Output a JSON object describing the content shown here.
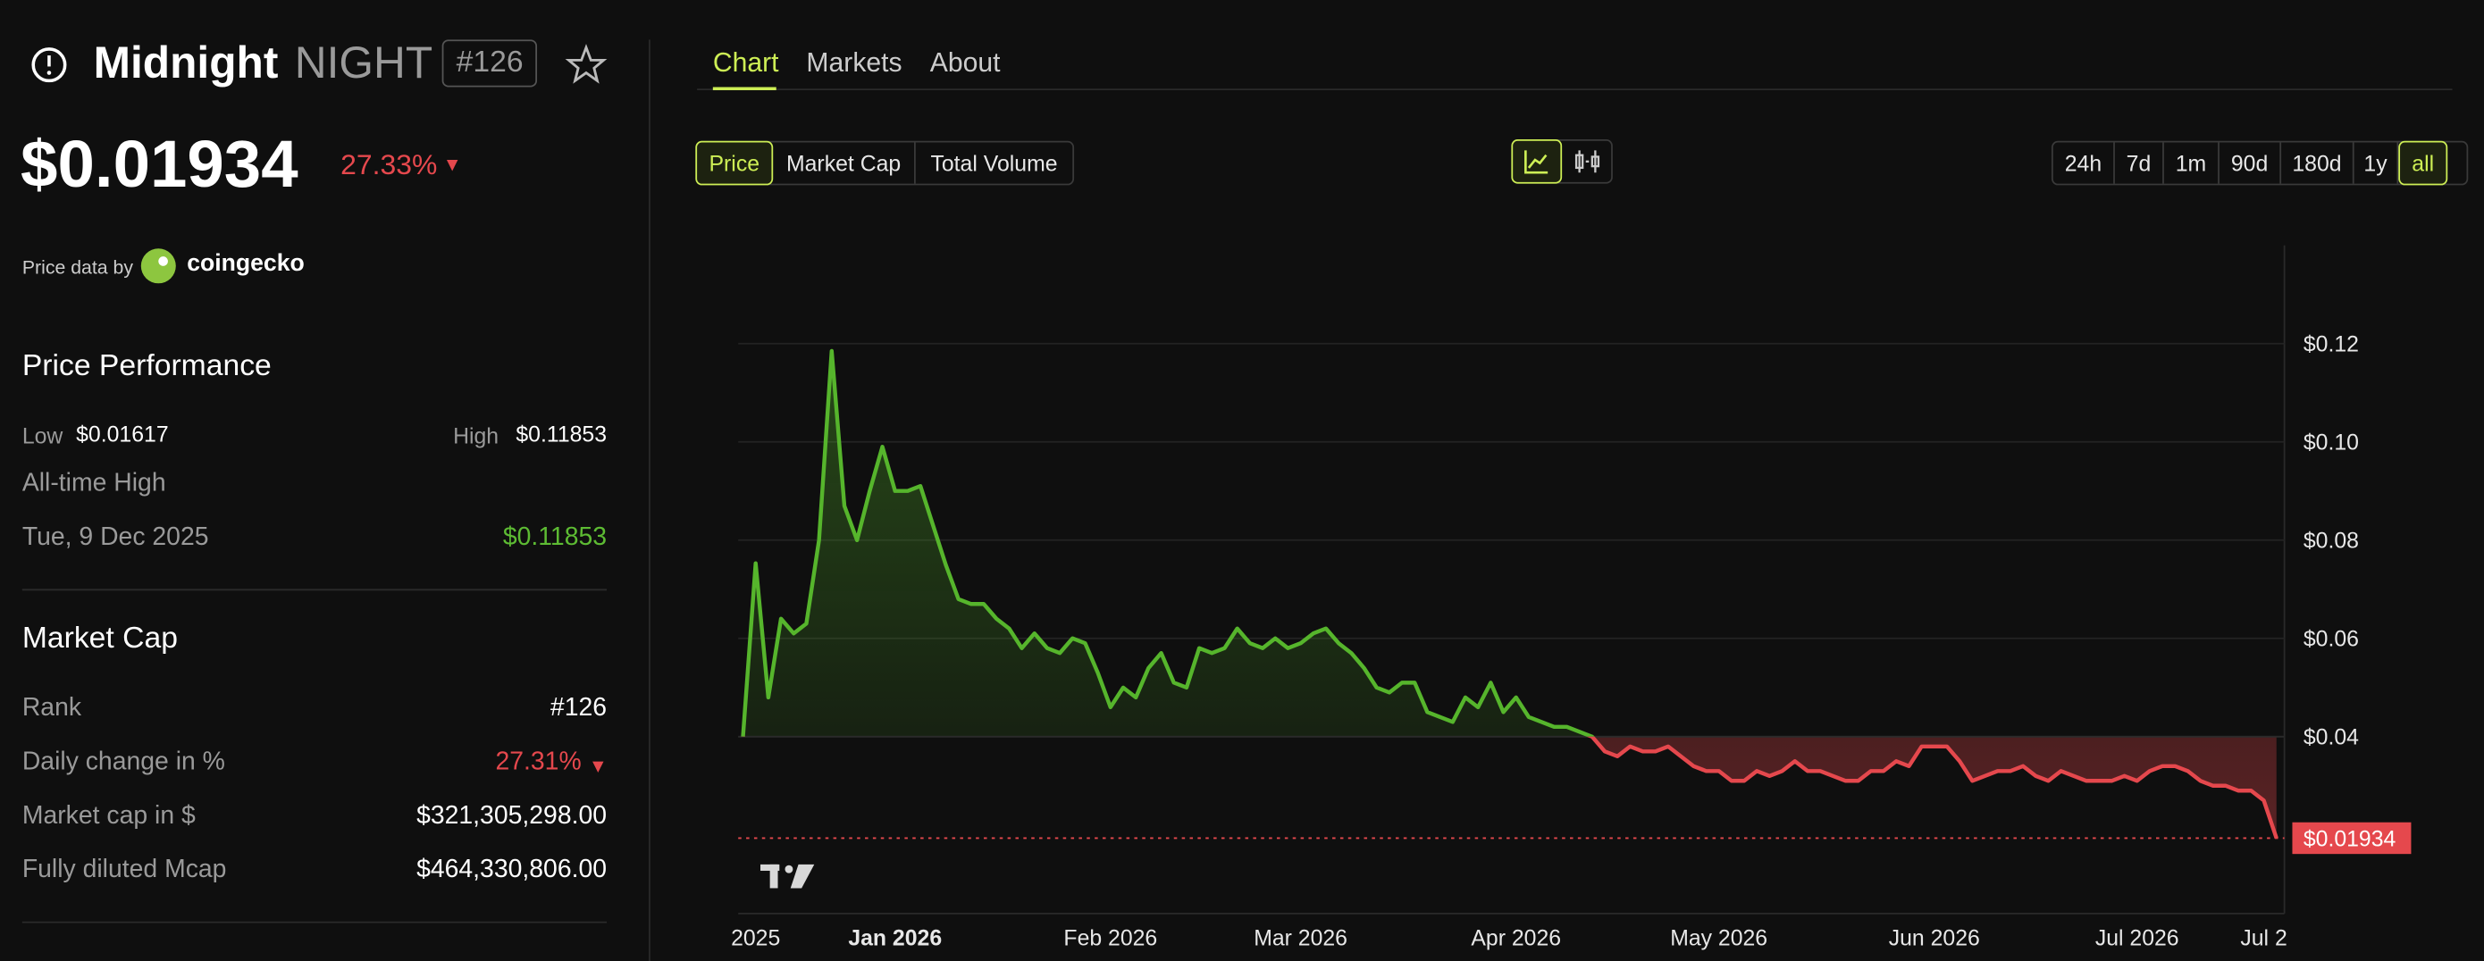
{
  "header": {
    "name": "Midnight",
    "symbol": "NIGHT",
    "rank": "#126",
    "price": "$0.01934",
    "change": "27.33%",
    "source_prefix": "Price data by",
    "source": "coingecko"
  },
  "performance": {
    "title": "Price Performance",
    "low_label": "Low",
    "low": "$0.01617",
    "high_label": "High",
    "high": "$0.11853",
    "ath_label": "All-time High",
    "ath_date": "Tue, 9 Dec 2025",
    "ath": "$0.11853"
  },
  "market_cap": {
    "title": "Market Cap",
    "rows": [
      [
        "Rank",
        "#126"
      ],
      [
        "Daily change in %",
        "27.31%"
      ],
      [
        "Market cap in $",
        "$321,305,298.00"
      ],
      [
        "Fully diluted Mcap",
        "$464,330,806.00"
      ]
    ]
  },
  "tabs": [
    "Chart",
    "Markets",
    "About"
  ],
  "metrics": [
    "Price",
    "Market Cap",
    "Total Volume"
  ],
  "ranges": [
    "24h",
    "7d",
    "1m",
    "90d",
    "180d",
    "1y",
    "all"
  ],
  "chart_data": {
    "type": "line",
    "categories": [
      null,
      "2025",
      null,
      null,
      null,
      null,
      null,
      null,
      null,
      null,
      null,
      null,
      "Jan 2026",
      null,
      null,
      null,
      null,
      null,
      null,
      null,
      null,
      null,
      null,
      null,
      null,
      null,
      null,
      null,
      null,
      "Feb 2026",
      null,
      null,
      null,
      null,
      null,
      null,
      null,
      null,
      null,
      null,
      null,
      null,
      null,
      null,
      "Mar 2026",
      null,
      null,
      null,
      null,
      null,
      null,
      null,
      null,
      null,
      null,
      null,
      null,
      null,
      null,
      null,
      null,
      "Apr 2026",
      null,
      null,
      null,
      null,
      null,
      null,
      null,
      null,
      null,
      null,
      null,
      null,
      null,
      null,
      null,
      "May 2026",
      null,
      null,
      null,
      null,
      null,
      null,
      null,
      null,
      null,
      null,
      null,
      null,
      null,
      null,
      null,
      null,
      "Jun 2026",
      null,
      null,
      null,
      null,
      null,
      null,
      null,
      null,
      null,
      null,
      null,
      null,
      null,
      null,
      null,
      "Jul 2026",
      null,
      null,
      null,
      null,
      null,
      null,
      null,
      null,
      null,
      "Jul 2",
      null
    ],
    "values": [
      0.04,
      0.0753,
      0.048,
      0.064,
      0.061,
      0.063,
      0.08,
      0.1185,
      0.087,
      0.08,
      0.09,
      0.099,
      0.09,
      0.09,
      0.091,
      0.083,
      0.075,
      0.068,
      0.067,
      0.067,
      0.064,
      0.062,
      0.058,
      0.061,
      0.058,
      0.057,
      0.06,
      0.059,
      0.053,
      0.046,
      0.05,
      0.048,
      0.054,
      0.057,
      0.051,
      0.05,
      0.058,
      0.057,
      0.058,
      0.062,
      0.059,
      0.058,
      0.06,
      0.058,
      0.059,
      0.061,
      0.062,
      0.059,
      0.057,
      0.054,
      0.05,
      0.049,
      0.051,
      0.051,
      0.045,
      0.044,
      0.043,
      0.048,
      0.046,
      0.051,
      0.045,
      0.048,
      0.044,
      0.043,
      0.042,
      0.042,
      0.041,
      0.04,
      0.037,
      0.036,
      0.038,
      0.037,
      0.037,
      0.038,
      0.036,
      0.034,
      0.033,
      0.033,
      0.031,
      0.031,
      0.033,
      0.032,
      0.033,
      0.035,
      0.033,
      0.033,
      0.032,
      0.031,
      0.031,
      0.033,
      0.033,
      0.035,
      0.034,
      0.038,
      0.038,
      0.038,
      0.035,
      0.031,
      0.032,
      0.033,
      0.033,
      0.034,
      0.032,
      0.031,
      0.033,
      0.032,
      0.031,
      0.031,
      0.031,
      0.032,
      0.031,
      0.033,
      0.034,
      0.034,
      0.033,
      0.031,
      0.03,
      0.03,
      0.029,
      0.029,
      0.027,
      0.01934
    ],
    "baseline": 0.04,
    "last_value_label": "$0.01934",
    "color_up": "#56b52c",
    "color_down": "#e5484d",
    "ylim": [
      0.004,
      0.14
    ],
    "yticks": [
      {
        "value": 0.04,
        "label": "$0.04"
      },
      {
        "value": 0.06,
        "label": "$0.06"
      },
      {
        "value": 0.08,
        "label": "$0.08"
      },
      {
        "value": 0.1,
        "label": "$0.10"
      },
      {
        "value": 0.12,
        "label": "$0.12"
      }
    ],
    "grid": true
  }
}
